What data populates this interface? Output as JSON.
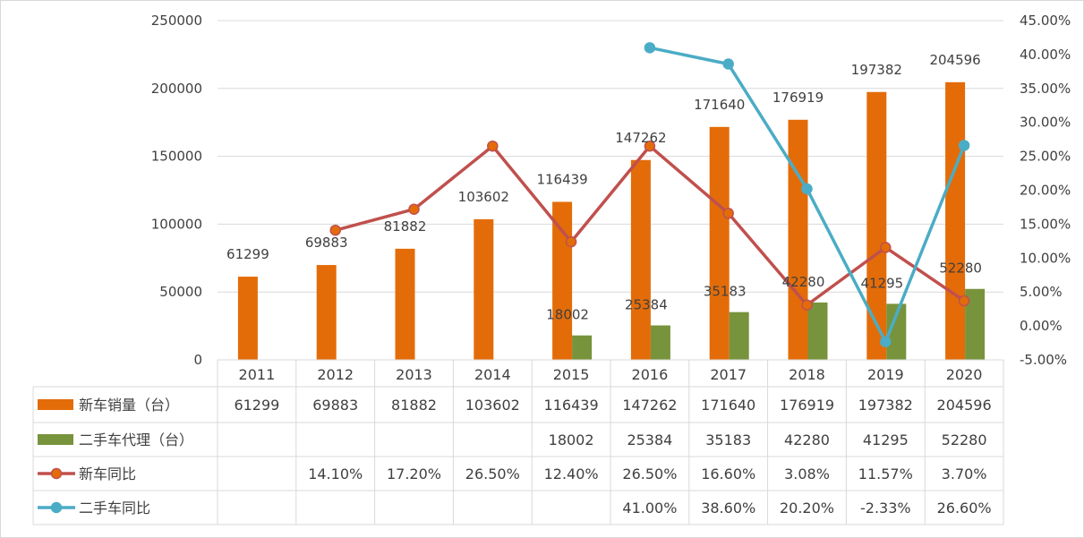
{
  "chart_data": {
    "type": "bar",
    "categories": [
      "2011",
      "2012",
      "2013",
      "2014",
      "2015",
      "2016",
      "2017",
      "2018",
      "2019",
      "2020"
    ],
    "left_axis": {
      "ylim": [
        0,
        250000
      ],
      "ticks": [
        "0",
        "50000",
        "100000",
        "150000",
        "200000",
        "250000"
      ]
    },
    "right_axis": {
      "ylim": [
        -5,
        45
      ],
      "ticks": [
        "-5.00%",
        "0.00%",
        "5.00%",
        "10.00%",
        "15.00%",
        "20.00%",
        "25.00%",
        "30.00%",
        "35.00%",
        "40.00%",
        "45.00%"
      ]
    },
    "series": [
      {
        "name": "新车销量（台）",
        "kind": "bar",
        "axis": "left",
        "color": "#E36C09",
        "values": [
          61299,
          69883,
          81882,
          103602,
          116439,
          147262,
          171640,
          176919,
          197382,
          204596
        ],
        "labels": [
          "61299",
          "69883",
          "81882",
          "103602",
          "116439",
          "147262",
          "171640",
          "176919",
          "197382",
          "204596"
        ]
      },
      {
        "name": "二手车代理（台）",
        "kind": "bar",
        "axis": "left",
        "color": "#77933C",
        "values": [
          null,
          null,
          null,
          null,
          18002,
          25384,
          35183,
          42280,
          41295,
          52280
        ],
        "labels": [
          "",
          "",
          "",
          "",
          "18002",
          "25384",
          "35183",
          "42280",
          "41295",
          "52280"
        ]
      },
      {
        "name": "新车同比",
        "kind": "line",
        "axis": "right",
        "color": "#C0504D",
        "marker_fill": "#E36C09",
        "values": [
          null,
          14.1,
          17.2,
          26.5,
          12.4,
          26.5,
          16.6,
          3.08,
          11.57,
          3.7
        ],
        "labels": [
          "",
          "14.10%",
          "17.20%",
          "26.50%",
          "12.40%",
          "26.50%",
          "16.60%",
          "3.08%",
          "11.57%",
          "3.70%"
        ]
      },
      {
        "name": "二手车同比",
        "kind": "line",
        "axis": "right",
        "color": "#4BACC6",
        "marker_fill": "#4BACC6",
        "values": [
          null,
          null,
          null,
          null,
          null,
          41.0,
          38.6,
          20.2,
          -2.33,
          26.6
        ],
        "labels": [
          "",
          "",
          "",
          "",
          "",
          "41.00%",
          "38.60%",
          "20.20%",
          "-2.33%",
          "26.60%"
        ]
      }
    ],
    "grid": true,
    "legend": "data-table-bottom"
  }
}
